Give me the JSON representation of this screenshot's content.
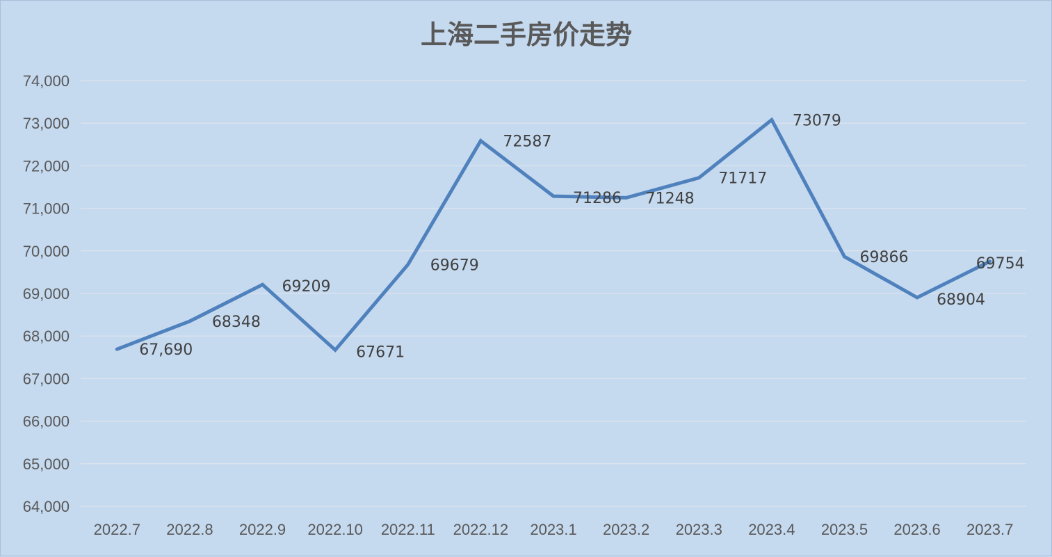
{
  "chart_data": {
    "type": "line",
    "title": "上海二手房价走势",
    "xlabel": "",
    "ylabel": "",
    "categories": [
      "2022.7",
      "2022.8",
      "2022.9",
      "2022.10",
      "2022.11",
      "2022.12",
      "2023.1",
      "2023.2",
      "2023.3",
      "2023.4",
      "2023.5",
      "2023.6",
      "2023.7"
    ],
    "series": [
      {
        "values": [
          67690,
          68348,
          69209,
          67671,
          69679,
          72587,
          71286,
          71248,
          71717,
          73079,
          69866,
          68904,
          69754
        ],
        "data_labels": [
          "67,690",
          "68348",
          "69209",
          "67671",
          "69679",
          "72587",
          "71286",
          "71248",
          "71717",
          "73079",
          "69866",
          "68904",
          "69754"
        ],
        "color": "#4f81bd"
      }
    ],
    "ylim": [
      64000,
      74000
    ],
    "y_ticks": [
      64000,
      65000,
      66000,
      67000,
      68000,
      69000,
      70000,
      71000,
      72000,
      73000,
      74000
    ],
    "y_tick_labels": [
      "64,000",
      "65,000",
      "66,000",
      "67,000",
      "68,000",
      "69,000",
      "70,000",
      "71,000",
      "72,000",
      "73,000",
      "74,000"
    ],
    "grid": true,
    "legend": "none",
    "background_color": "#c5d9ef"
  }
}
